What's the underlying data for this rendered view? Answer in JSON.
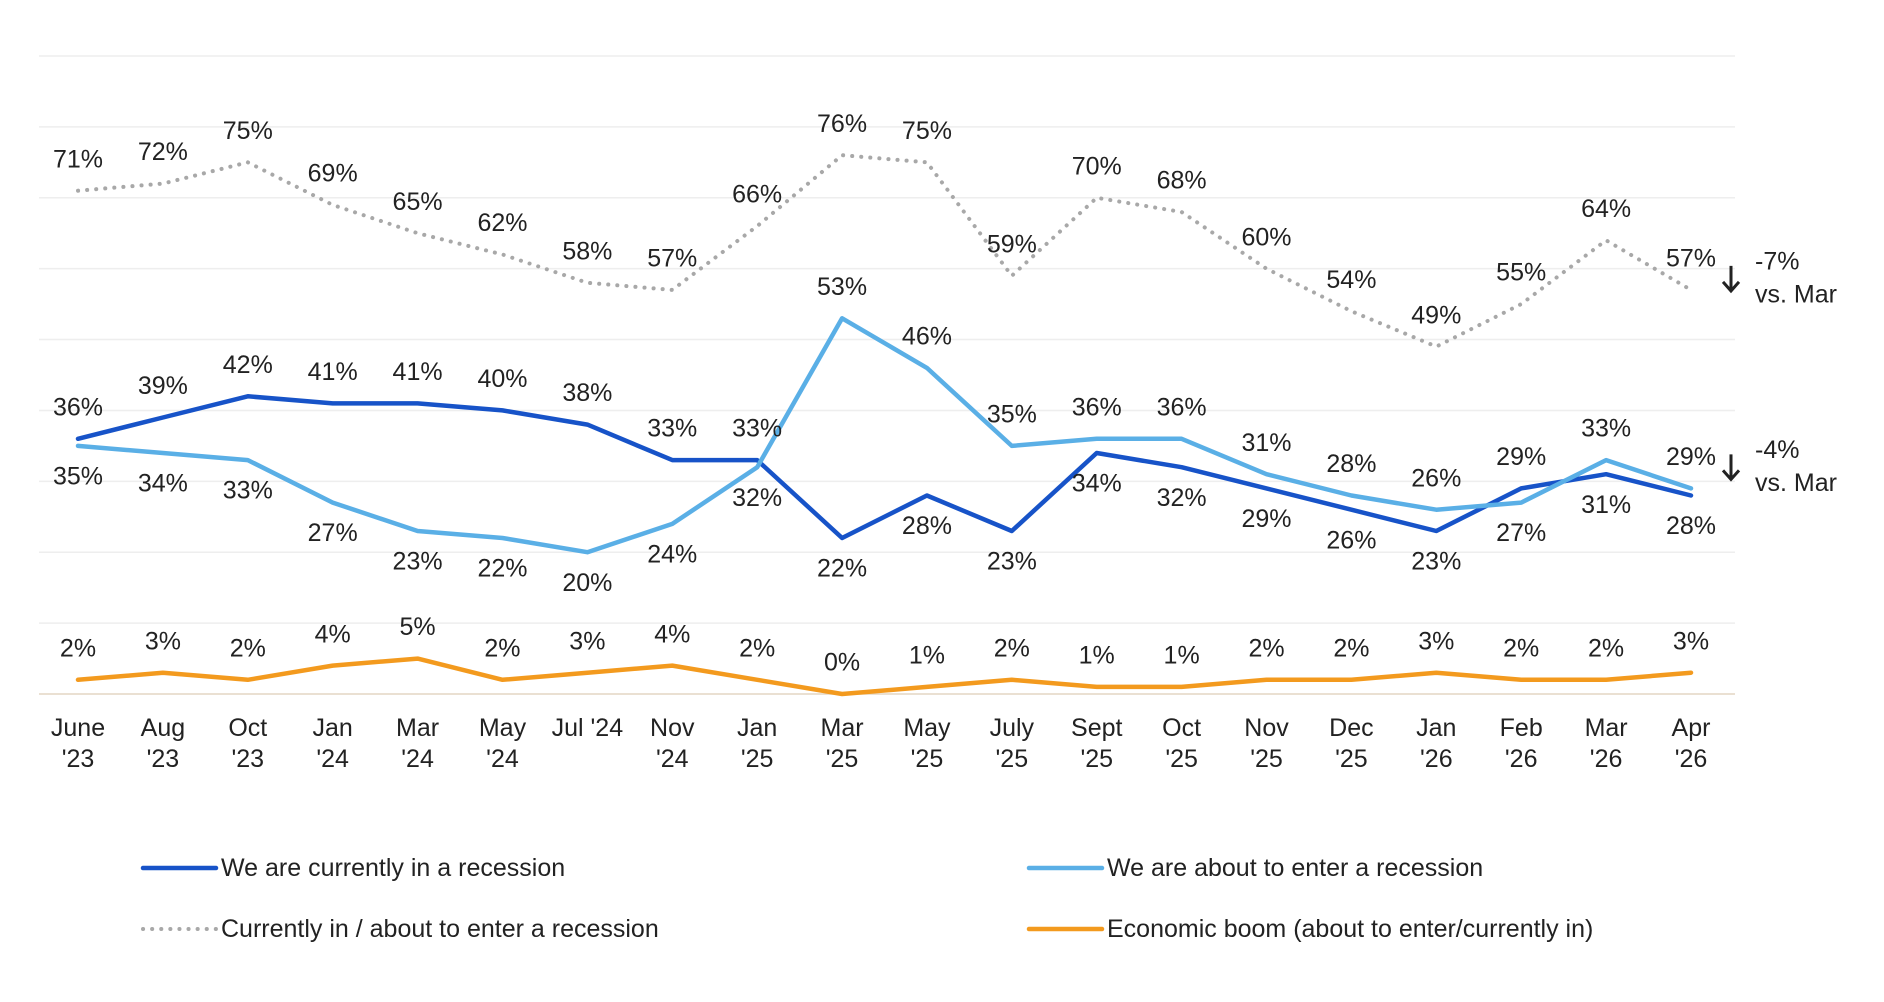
{
  "chart_data": {
    "type": "line",
    "categories": [
      "June '23",
      "Aug '23",
      "Oct '23",
      "Jan '24",
      "Mar '24",
      "May '24",
      "Jul '24",
      "Nov '24",
      "Jan '25",
      "Mar '25",
      "May '25",
      "July '25",
      "Sept '25",
      "Oct '25",
      "Nov '25",
      "Dec '25",
      "Jan '26",
      "Feb '26",
      "Mar '26",
      "Apr '26"
    ],
    "series": [
      {
        "name": "We are currently in a recession",
        "color": "#1753c8",
        "style": "solid",
        "values": [
          36,
          39,
          42,
          41,
          41,
          40,
          38,
          33,
          33,
          22,
          28,
          23,
          34,
          32,
          29,
          26,
          23,
          29,
          31,
          28
        ],
        "value_labels": [
          "36%",
          "39%",
          "42%",
          "41%",
          "41%",
          "40%",
          "38%",
          "33%",
          "33%",
          "22%",
          "28%",
          "23%",
          "34%",
          "32%",
          "29%",
          "26%",
          "23%",
          "29%",
          "31%",
          "28%"
        ]
      },
      {
        "name": "We are about to enter a recession",
        "color": "#5aafe6",
        "style": "solid",
        "values": [
          35,
          34,
          33,
          27,
          23,
          22,
          20,
          24,
          32,
          53,
          46,
          35,
          36,
          36,
          31,
          28,
          26,
          27,
          33,
          29
        ],
        "value_labels": [
          "35%",
          "34%",
          "33%",
          "27%",
          "23%",
          "22%",
          "20%",
          "24%",
          "32%",
          "53%",
          "46%",
          "35%",
          "36%",
          "36%",
          "31%",
          "28%",
          "26%",
          "27%",
          "33%",
          "29%"
        ]
      },
      {
        "name": "Currently in / about to enter a recession",
        "color": "#a8a8a8",
        "style": "dotted",
        "values": [
          71,
          72,
          75,
          69,
          65,
          62,
          58,
          57,
          66,
          76,
          75,
          59,
          70,
          68,
          60,
          54,
          49,
          55,
          64,
          57
        ],
        "value_labels": [
          "71%",
          "72%",
          "75%",
          "69%",
          "65%",
          "62%",
          "58%",
          "57%",
          "66%",
          "76%",
          "75%",
          "59%",
          "70%",
          "68%",
          "60%",
          "54%",
          "49%",
          "55%",
          "64%",
          "57%"
        ]
      },
      {
        "name": "Economic boom (about to enter/currently in)",
        "color": "#f39a1e",
        "style": "solid",
        "values": [
          2,
          3,
          2,
          4,
          5,
          2,
          3,
          4,
          2,
          0,
          1,
          2,
          1,
          1,
          2,
          2,
          3,
          2,
          2,
          3
        ],
        "value_labels": [
          "2%",
          "3%",
          "2%",
          "4%",
          "5%",
          "2%",
          "3%",
          "4%",
          "2%",
          "0%",
          "1%",
          "2%",
          "1%",
          "1%",
          "2%",
          "2%",
          "3%",
          "2%",
          "2%",
          "3%"
        ]
      }
    ],
    "annotations": [
      [
        "-7%",
        "vs. Mar"
      ],
      [
        "-4%",
        "vs. Mar"
      ]
    ],
    "ylim": [
      0,
      90
    ],
    "yticks": [
      0,
      10,
      20,
      30,
      40,
      50,
      60,
      70,
      80,
      90
    ],
    "grid": true
  }
}
